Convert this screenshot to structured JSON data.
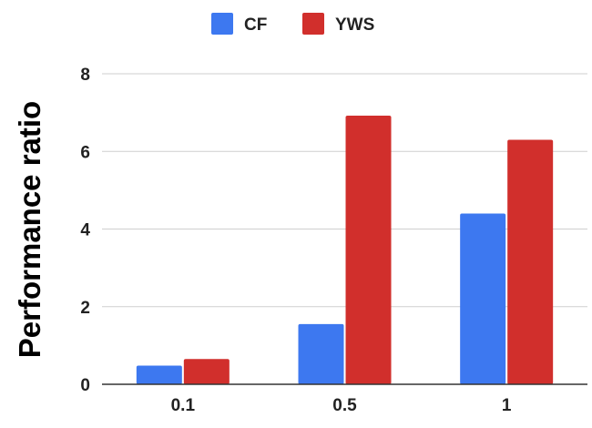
{
  "chart_data": {
    "type": "bar",
    "title": "",
    "xlabel": "",
    "ylabel": "Performance ratio",
    "categories": [
      "0.1",
      "0.5",
      "1"
    ],
    "series": [
      {
        "name": "CF",
        "color": "#3d78f0",
        "values": [
          0.48,
          1.55,
          4.4
        ]
      },
      {
        "name": "YWS",
        "color": "#d12f2c",
        "values": [
          0.65,
          6.92,
          6.3
        ]
      }
    ],
    "ylim": [
      0,
      8
    ],
    "yticks": [
      "0",
      "2",
      "4",
      "6",
      "8"
    ],
    "grid": true,
    "legend_position": "top-center"
  }
}
